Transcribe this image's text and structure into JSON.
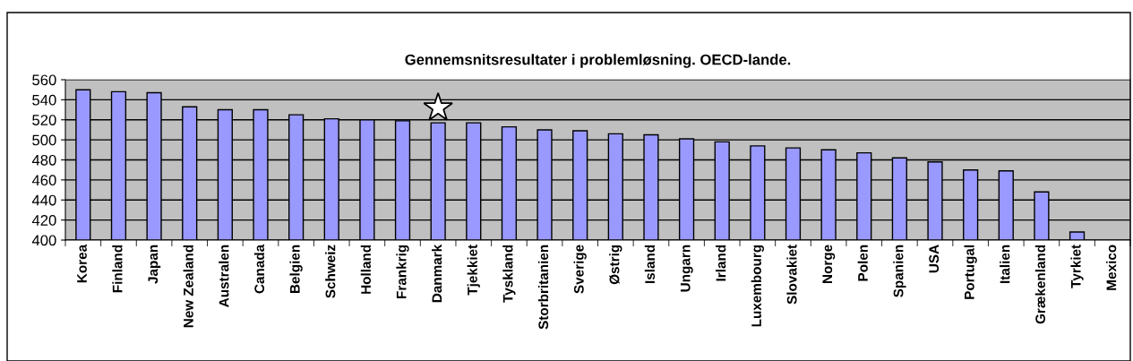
{
  "chart_data": {
    "type": "bar",
    "title": "Gennemsnitsresultater i problemløsning. OECD-lande.",
    "categories": [
      "Korea",
      "Finland",
      "Japan",
      "New Zealand",
      "Australen",
      "Canada",
      "Belgien",
      "Schweiz",
      "Holland",
      "Frankrig",
      "Danmark",
      "Tjekkiet",
      "Tyskland",
      "Storbritanien",
      "Sverige",
      "Østrig",
      "Island",
      "Ungarn",
      "Irland",
      "Luxembourg",
      "Slovakiet",
      "Norge",
      "Polen",
      "Spanien",
      "USA",
      "Portugal",
      "Italien",
      "Grækenland",
      "Tyrkiet",
      "Mexico"
    ],
    "values": [
      550,
      548,
      547,
      533,
      530,
      530,
      525,
      521,
      520,
      519,
      517,
      517,
      513,
      510,
      509,
      506,
      505,
      501,
      498,
      494,
      492,
      490,
      487,
      482,
      478,
      470,
      469,
      448,
      408,
      null
    ],
    "color": "#9999ff",
    "ylim": [
      400,
      560
    ],
    "yticks": [
      400,
      420,
      440,
      460,
      480,
      500,
      520,
      540,
      560
    ],
    "grid": "y"
  }
}
